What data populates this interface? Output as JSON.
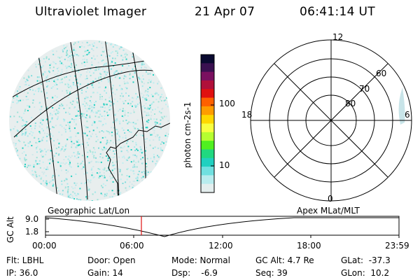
{
  "header": {
    "instrument": "Ultraviolet Imager",
    "date": "21 Apr 07",
    "time": "06:41:14 UT"
  },
  "colorbar": {
    "unit_label": "photon cm-2s-1",
    "ticks": [
      "100",
      "10"
    ],
    "colors": [
      "#0a0a30",
      "#3a1050",
      "#7a1060",
      "#b0103a",
      "#e01010",
      "#ff6000",
      "#ff9c00",
      "#ffd800",
      "#f8ff40",
      "#b6ff30",
      "#50f020",
      "#20d880",
      "#20d0c0",
      "#70e0e0",
      "#b8ecee",
      "#e4eeee"
    ]
  },
  "polar": {
    "mlt_labels": {
      "top": "12",
      "left": "18",
      "right": "6",
      "bottom": "0"
    },
    "lat_labels": [
      "60",
      "70",
      "80"
    ]
  },
  "timeline": {
    "left_label": "Geographic Lat/Lon",
    "right_label": "Apex MLat/MLT",
    "yaxis_title": "GC Alt",
    "ytick_top": "9.0",
    "ytick_bottom": "1.8",
    "xticks": [
      "00:00",
      "06:00",
      "12:00",
      "18:00",
      "23:59"
    ],
    "marker_color": "#e01010"
  },
  "status": {
    "flt": "Flt: LBHL",
    "ip": "IP: 36.0",
    "door": "Door: Open",
    "gain": "Gain: 14",
    "mode": "Mode: Normal",
    "dsp": "Dsp:    -6.9",
    "gcalt": "GC Alt: 4.7 Re",
    "seq": "Seq: 39",
    "glat": "GLat:  -37.3",
    "glon": "GLon:  10.2"
  }
}
